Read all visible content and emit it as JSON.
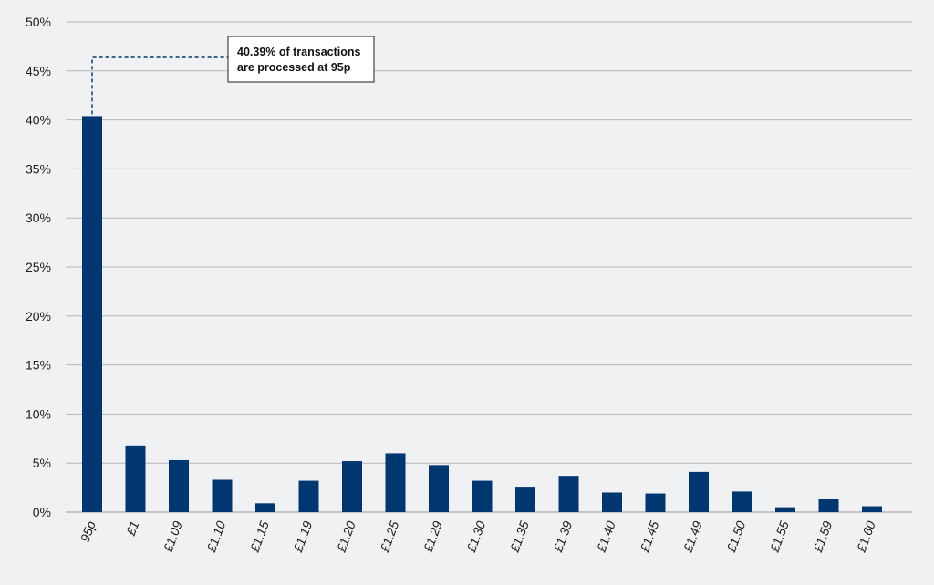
{
  "chart_data": {
    "type": "bar",
    "categories": [
      "95p",
      "£1",
      "£1.09",
      "£1.10",
      "£1.15",
      "£1.19",
      "£1.20",
      "£1.25",
      "£1.29",
      "£1.30",
      "£1.35",
      "£1.39",
      "£1.40",
      "£1.45",
      "£1.49",
      "£1.50",
      "£1.55",
      "£1.59",
      "£1.60"
    ],
    "values": [
      40.39,
      6.8,
      5.3,
      3.3,
      0.9,
      3.2,
      5.2,
      6.0,
      4.8,
      3.2,
      2.5,
      3.7,
      2.0,
      1.9,
      4.1,
      2.1,
      0.5,
      1.3,
      0.6
    ],
    "yticks": [
      "0%",
      "5%",
      "10%",
      "15%",
      "20%",
      "25%",
      "30%",
      "35%",
      "40%",
      "45%",
      "50%"
    ],
    "ylim": [
      0,
      50
    ],
    "grid": true,
    "bar_color": "#003770",
    "title": "",
    "xlabel": "",
    "ylabel": "",
    "annotation": {
      "line1": "40.39% of transactions",
      "line2": "are processed at 95p",
      "target_index": 0
    }
  }
}
